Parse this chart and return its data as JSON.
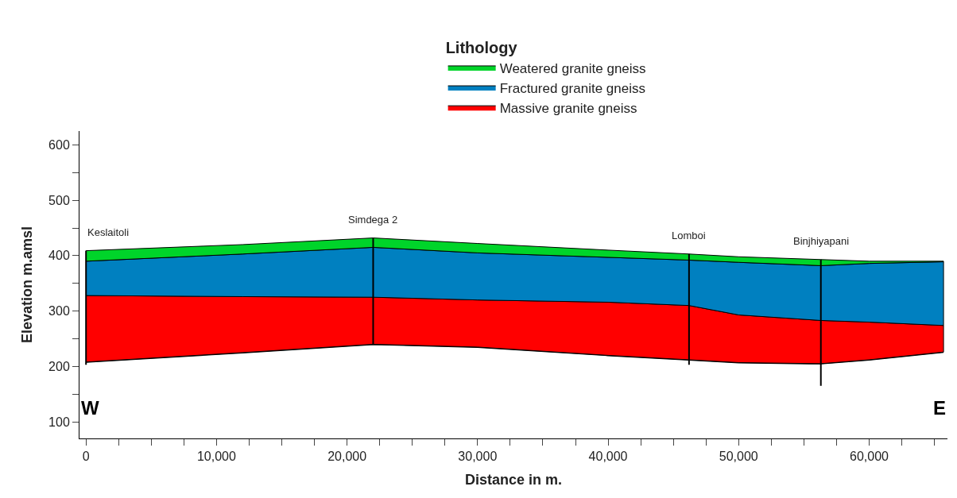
{
  "chart_data": {
    "type": "area",
    "xlabel": "Distance in m.",
    "ylabel": "Elevation m.amsl",
    "legend_title": "Lithology",
    "legend": "top",
    "x": [
      0,
      12000,
      22000,
      30000,
      40000,
      46200,
      50000,
      56300,
      60000,
      65700
    ],
    "series": [
      {
        "type": "line",
        "color": "#000000",
        "values": [
          208,
          225,
          240,
          235,
          220,
          212,
          207,
          205,
          212,
          226
        ]
      },
      {
        "name": "Massive granite gneiss",
        "color": "#ff0000",
        "values": [
          328,
          326,
          325,
          320,
          316,
          310,
          293,
          283,
          280,
          274
        ]
      },
      {
        "name": "Fractured granite gneiss",
        "color": "#0080c0",
        "values": [
          390,
          403,
          415,
          405,
          397,
          392,
          388,
          382,
          386,
          389
        ]
      },
      {
        "name": "Weatered granite gneiss",
        "color": "#00d42a",
        "values": [
          409,
          420,
          432,
          422,
          410,
          403,
          398,
          393,
          390,
          390
        ]
      },
      {
        "type": "line",
        "color": "#000000",
        "x": [
          0,
          0
        ],
        "values": [
          409,
          203
        ]
      },
      {
        "type": "line",
        "color": "#000000",
        "x": [
          22000,
          22000
        ],
        "values": [
          432,
          240
        ]
      },
      {
        "type": "line",
        "color": "#000000",
        "x": [
          46200,
          46200
        ],
        "values": [
          403,
          203
        ]
      },
      {
        "type": "line",
        "color": "#000000",
        "x": [
          56300,
          56300
        ],
        "values": [
          393,
          165
        ]
      }
    ],
    "xlim": [
      -500,
      66000
    ],
    "xticks": [
      0,
      {
        "value": 2500,
        "label": null
      },
      {
        "value": 5000,
        "label": null
      },
      {
        "value": 7500,
        "label": null
      },
      {
        "value": 10000,
        "label": "10,000"
      },
      {
        "value": 12500,
        "label": null
      },
      {
        "value": 15000,
        "label": null
      },
      {
        "value": 17500,
        "label": null
      },
      {
        "value": 20000,
        "label": "20,000"
      },
      {
        "value": 22500,
        "label": null
      },
      {
        "value": 25000,
        "label": null
      },
      {
        "value": 27500,
        "label": null
      },
      {
        "value": 30000,
        "label": "30,000"
      },
      {
        "value": 32500,
        "label": null
      },
      {
        "value": 35000,
        "label": null
      },
      {
        "value": 37500,
        "label": null
      },
      {
        "value": 40000,
        "label": "40,000"
      },
      {
        "value": 42500,
        "label": null
      },
      {
        "value": 45000,
        "label": null
      },
      {
        "value": 47500,
        "label": null
      },
      {
        "value": 50000,
        "label": "50,000"
      },
      {
        "value": 52500,
        "label": null
      },
      {
        "value": 55000,
        "label": null
      },
      {
        "value": 57500,
        "label": null
      },
      {
        "value": 60000,
        "label": "60,000"
      },
      {
        "value": 62500,
        "label": null
      },
      {
        "value": 65000,
        "label": null
      }
    ],
    "ylim": [
      70,
      625
    ],
    "yticks": [
      100,
      {
        "value": 150,
        "label": null
      },
      200,
      {
        "value": 250,
        "label": null
      },
      300,
      {
        "value": 350,
        "label": null
      },
      400,
      {
        "value": 450,
        "label": null
      },
      500,
      {
        "value": 550,
        "label": null
      },
      600
    ],
    "annotations": [
      {
        "text": "Keslaitoli",
        "x": 0,
        "y": 409
      },
      {
        "text": "Simdega 2",
        "x": 22000,
        "y": 432
      },
      {
        "text": "Lomboi",
        "x": 46200,
        "y": 403
      },
      {
        "text": "Binjhiyapani",
        "x": 56300,
        "y": 393
      },
      "W",
      "E"
    ]
  }
}
